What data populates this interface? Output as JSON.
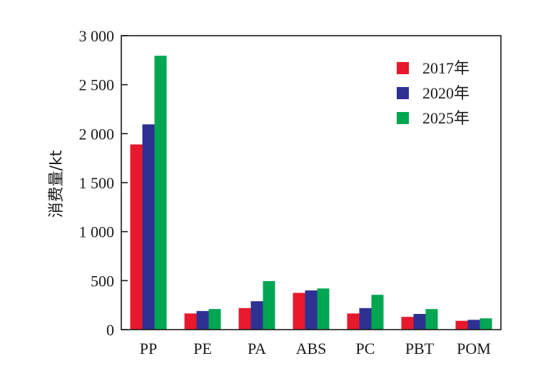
{
  "chart_data": {
    "type": "bar",
    "title": "",
    "xlabel": "",
    "ylabel": "消费量/kt",
    "ylim": [
      0,
      3000
    ],
    "yticks": [
      0,
      500,
      1000,
      1500,
      2000,
      2500,
      3000
    ],
    "ytick_labels": [
      "0",
      "500",
      "1 000",
      "1 500",
      "2 000",
      "2 500",
      "3 000"
    ],
    "categories": [
      "PP",
      "PE",
      "PA",
      "ABS",
      "PC",
      "PBT",
      "POM"
    ],
    "series": [
      {
        "name": "2017年",
        "color": "#e8192c",
        "values": [
          1890,
          165,
          220,
          375,
          165,
          130,
          90
        ]
      },
      {
        "name": "2020年",
        "color": "#2e3192",
        "values": [
          2095,
          190,
          290,
          400,
          220,
          160,
          100
        ]
      },
      {
        "name": "2025年",
        "color": "#00a651",
        "values": [
          2795,
          210,
          495,
          420,
          355,
          210,
          115
        ]
      }
    ],
    "legend_position": "top-right",
    "grid": false
  }
}
